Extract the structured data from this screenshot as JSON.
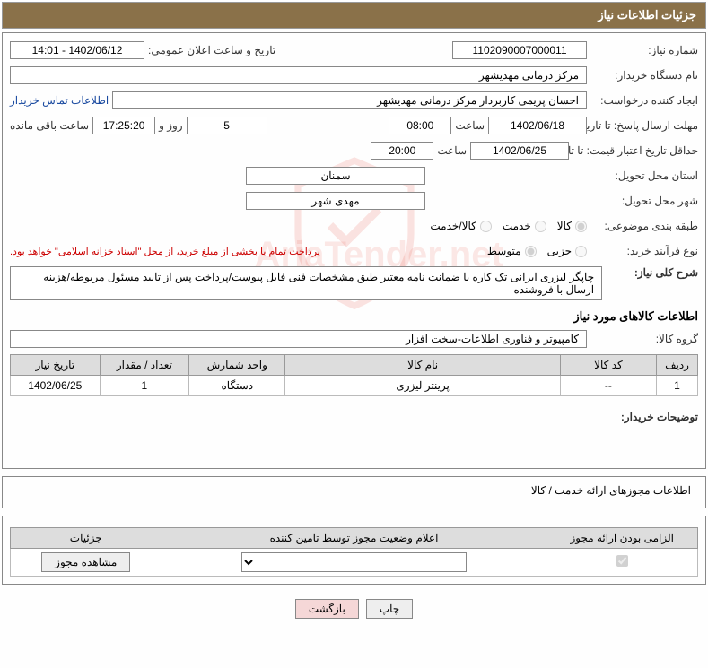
{
  "header": {
    "title": "جزئیات اطلاعات نیاز"
  },
  "fields": {
    "need_number": {
      "label": "شماره نیاز:",
      "value": "1102090007000011"
    },
    "announce_datetime": {
      "label": "تاریخ و ساعت اعلان عمومی:",
      "value": "1402/06/12 - 14:01"
    },
    "buyer_org": {
      "label": "نام دستگاه خریدار:",
      "value": "مرکز درمانی مهدیشهر"
    },
    "requester": {
      "label": "ایجاد کننده درخواست:",
      "value": "احسان پریمی کاربردار مرکز درمانی مهدیشهر"
    },
    "buyer_contact_link": "اطلاعات تماس خریدار",
    "reply_deadline": {
      "label": "مهلت ارسال پاسخ: تا تاریخ:",
      "date": "1402/06/18",
      "time_label": "ساعت",
      "time": "08:00",
      "days": "5",
      "days_label": "روز و",
      "countdown": "17:25:20",
      "remaining_label": "ساعت باقی مانده"
    },
    "price_validity": {
      "label": "حداقل تاریخ اعتبار قیمت: تا تاریخ:",
      "date": "1402/06/25",
      "time_label": "ساعت",
      "time": "20:00"
    },
    "delivery_province": {
      "label": "استان محل تحویل:",
      "value": "سمنان"
    },
    "delivery_city": {
      "label": "شهر محل تحویل:",
      "value": "مهدی شهر"
    },
    "subject_class": {
      "label": "طبقه بندی موضوعی:",
      "options": [
        "کالا",
        "خدمت",
        "کالا/خدمت"
      ],
      "selected": "کالا"
    },
    "purchase_process": {
      "label": "نوع فرآیند خرید:",
      "options": [
        "جزیی",
        "متوسط"
      ],
      "selected": "متوسط",
      "note": "پرداخت تمام یا بخشی از مبلغ خرید، از محل \"اسناد خزانه اسلامی\" خواهد بود."
    },
    "need_summary": {
      "label": "شرح کلی نیاز:",
      "value": "چاپگر لیزری ایرانی تک کاره با ضمانت نامه معتبر طبق مشخصات فنی فایل پیوست/پرداخت پس از تایید مسئول مربوطه/هزینه ارسال با فروشنده"
    },
    "goods_section_title": "اطلاعات کالاهای مورد نیاز",
    "goods_group": {
      "label": "گروه کالا:",
      "value": "کامپیوتر و فناوری اطلاعات-سخت افزار"
    }
  },
  "goods_table": {
    "columns": [
      "ردیف",
      "کد کالا",
      "نام کالا",
      "واحد شمارش",
      "تعداد / مقدار",
      "تاریخ نیاز"
    ],
    "rows": [
      [
        "1",
        "--",
        "پرینتر لیزری",
        "دستگاه",
        "1",
        "1402/06/25"
      ]
    ]
  },
  "buyer_notes": {
    "label": "توضیحات خریدار:",
    "value": ""
  },
  "license_section": {
    "title": "اطلاعات مجوزهای ارائه خدمت / کالا",
    "columns": [
      "الزامی بودن ارائه مجوز",
      "اعلام وضعیت مجوز توسط تامین کننده",
      "جزئیات"
    ],
    "view_button": "مشاهده مجوز",
    "checkbox_checked": true
  },
  "buttons": {
    "print": "چاپ",
    "back": "بازگشت"
  }
}
